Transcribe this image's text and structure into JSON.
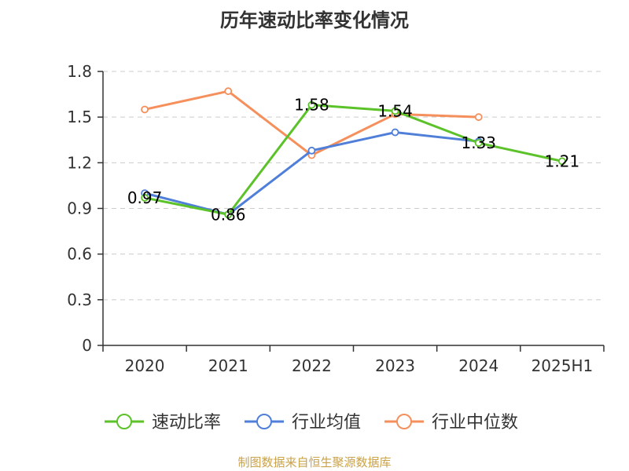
{
  "title": "历年速动比率变化情况",
  "source": "制图数据来自恒生聚源数据库",
  "colors": {
    "series1": "#5cc22a",
    "series2": "#4f7fd8",
    "series3": "#f58f5c",
    "grid": "#cccccc",
    "axis": "#333333"
  },
  "chart_data": {
    "type": "line",
    "title": "历年速动比率变化情况",
    "x": [
      "2020",
      "2021",
      "2022",
      "2023",
      "2024",
      "2025H1"
    ],
    "ylim": [
      0,
      1.8
    ],
    "yticks": [
      "0",
      "0.3",
      "0.6",
      "0.9",
      "1.2",
      "1.5",
      "1.8"
    ],
    "grid": true,
    "legend_position": "bottom",
    "series": [
      {
        "name": "速动比率",
        "values": [
          0.97,
          0.86,
          1.58,
          1.54,
          1.33,
          1.21
        ],
        "labels": [
          "0.97",
          "0.86",
          "1.58",
          "1.54",
          "1.33",
          "1.21"
        ]
      },
      {
        "name": "行业均值",
        "values": [
          1.0,
          0.86,
          1.28,
          1.4,
          1.34,
          null
        ]
      },
      {
        "name": "行业中位数",
        "values": [
          1.55,
          1.67,
          1.25,
          1.52,
          1.5,
          null
        ]
      }
    ]
  }
}
